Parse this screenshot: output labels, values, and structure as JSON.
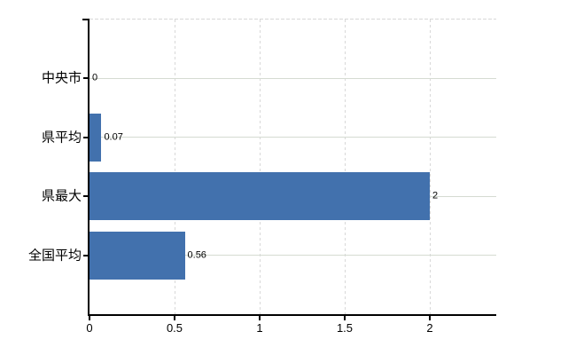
{
  "chart_data": {
    "type": "bar",
    "orientation": "horizontal",
    "title": "",
    "categories": [
      "中央市",
      "県平均",
      "県最大",
      "全国平均"
    ],
    "values": [
      0,
      0.07,
      2,
      0.56
    ],
    "data_labels": [
      "0",
      "0.07",
      "2",
      "0.56"
    ],
    "x_ticks": [
      0,
      0.5,
      1,
      1.5,
      2
    ],
    "x_tick_labels": [
      "0",
      "0.5",
      "1",
      "1.5",
      "2"
    ],
    "xlim": [
      0,
      2.39
    ],
    "grid": true,
    "legend": false,
    "gridline_style": {
      "horizontal": "solid",
      "vertical": "dashed",
      "top_border": "dashed"
    },
    "colors": {
      "bar": "#4271ad",
      "grid_horizontal": "#d5dbd2",
      "grid_vertical": "#d8d8d8",
      "axis": "#000000",
      "text": "#000000",
      "background": "#ffffff"
    }
  }
}
